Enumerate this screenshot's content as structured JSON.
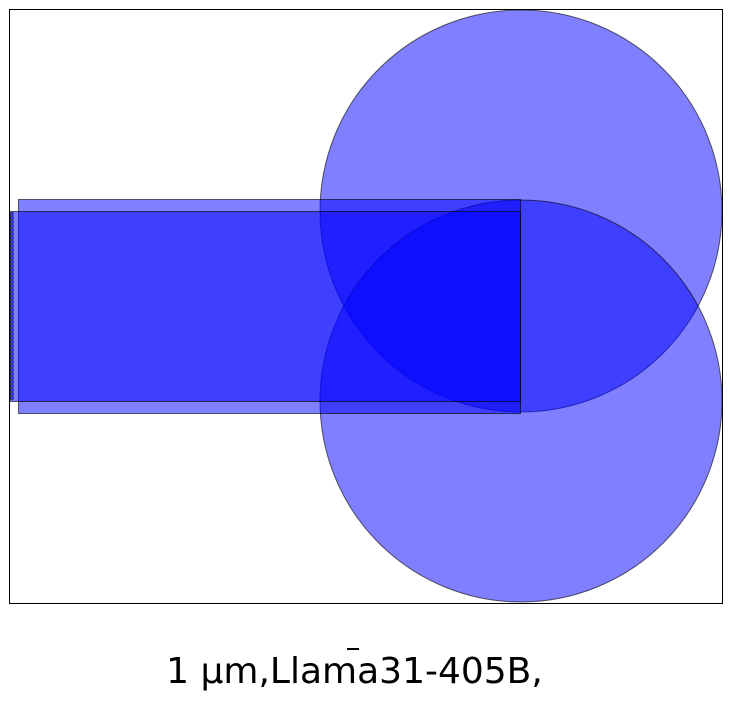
{
  "caption": "1 μm,Llama31-405B,",
  "colors": {
    "shape_fill": "#0000ff",
    "shape_opacity": 0.5,
    "outline": "#000000",
    "frame": "#000000",
    "background": "#ffffff"
  }
}
